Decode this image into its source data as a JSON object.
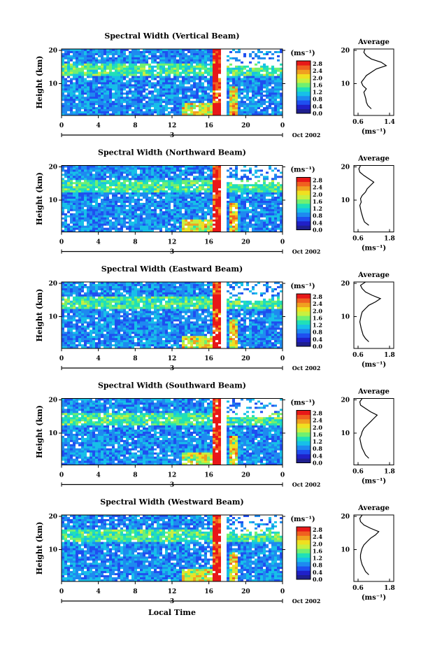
{
  "chart_data": {
    "type": "heatmap",
    "xlabel": "Local Time",
    "date_label": "Oct 2002",
    "day_marker": "3",
    "x_ticks": [
      "0",
      "4",
      "8",
      "12",
      "16",
      "20",
      "0"
    ],
    "y_ticks": [
      "20",
      "10"
    ],
    "ylabel": "Height (km)",
    "colorbar": {
      "unit": "(ms⁻¹)",
      "ticks": [
        "2.8",
        "2.4",
        "2.0",
        "1.6",
        "1.2",
        "0.8",
        "0.4",
        "0.0"
      ],
      "colors": [
        "#1f1f8f",
        "#2020c8",
        "#1f4ff0",
        "#1e8af0",
        "#17c0e8",
        "#20e0b8",
        "#70f070",
        "#c8f040",
        "#f0e020",
        "#f0a020",
        "#f06020",
        "#e81818"
      ]
    },
    "average_title": "Average",
    "average_unit": "(ms⁻¹)",
    "panels": [
      {
        "title": "Spectral Width (Vertical Beam)",
        "avg_xticks": [
          "0.6",
          "1.4"
        ],
        "avg_xlim": [
          0.6,
          1.4
        ],
        "avg_height_km": [
          2,
          3,
          4,
          5,
          6,
          7,
          8,
          9,
          10,
          11,
          12,
          13,
          14,
          15,
          16,
          17,
          18,
          19,
          20
        ],
        "avg_width": [
          0.95,
          0.88,
          0.85,
          0.84,
          0.82,
          0.8,
          0.85,
          0.78,
          0.75,
          0.8,
          0.85,
          0.95,
          1.05,
          1.25,
          1.15,
          0.95,
          0.85,
          0.8,
          0.82
        ]
      },
      {
        "title": "Spectral Width (Northward Beam)",
        "avg_xticks": [
          "0.6",
          "1.8"
        ],
        "avg_xlim": [
          0.6,
          1.8
        ],
        "avg_height_km": [
          2,
          3,
          4,
          5,
          6,
          7,
          8,
          9,
          10,
          11,
          12,
          13,
          14,
          15,
          16,
          17,
          18,
          19,
          20
        ],
        "avg_width": [
          1.05,
          0.92,
          0.88,
          0.85,
          0.82,
          0.8,
          0.78,
          0.82,
          0.8,
          0.85,
          0.95,
          1.0,
          1.1,
          1.2,
          1.05,
          0.9,
          0.78,
          0.75,
          0.8
        ]
      },
      {
        "title": "Spectral Width (Eastward Beam)",
        "avg_xticks": [
          "0.6",
          "1.8"
        ],
        "avg_xlim": [
          0.6,
          1.8
        ],
        "avg_height_km": [
          2,
          3,
          4,
          5,
          6,
          7,
          8,
          9,
          10,
          11,
          12,
          13,
          14,
          15,
          16,
          17,
          18,
          19,
          20
        ],
        "avg_width": [
          1.05,
          0.95,
          0.88,
          0.85,
          0.82,
          0.8,
          0.78,
          0.8,
          0.82,
          0.85,
          0.95,
          1.05,
          1.25,
          1.4,
          1.15,
          0.95,
          0.85,
          0.8,
          0.95
        ]
      },
      {
        "title": "Spectral Width (Southward Beam)",
        "avg_xticks": [
          "0.6",
          "1.8"
        ],
        "avg_xlim": [
          0.6,
          1.8
        ],
        "avg_height_km": [
          2,
          3,
          4,
          5,
          6,
          7,
          8,
          9,
          10,
          11,
          12,
          13,
          14,
          15,
          16,
          17,
          18,
          19,
          20
        ],
        "avg_width": [
          1.05,
          0.95,
          0.9,
          0.85,
          0.82,
          0.8,
          0.78,
          0.82,
          0.85,
          0.9,
          1.0,
          1.1,
          1.2,
          1.3,
          1.1,
          0.95,
          0.8,
          0.78,
          0.85
        ]
      },
      {
        "title": "Spectral Width (Westward Beam)",
        "avg_xticks": [
          "0.6",
          "1.8"
        ],
        "avg_xlim": [
          0.6,
          1.8
        ],
        "avg_height_km": [
          2,
          3,
          4,
          5,
          6,
          7,
          8,
          9,
          10,
          11,
          12,
          13,
          14,
          15,
          16,
          17,
          18,
          19,
          20
        ],
        "avg_width": [
          1.05,
          0.95,
          0.9,
          0.85,
          0.82,
          0.8,
          0.8,
          0.82,
          0.85,
          0.9,
          1.0,
          1.1,
          1.25,
          1.35,
          1.1,
          0.9,
          0.8,
          0.78,
          0.85
        ]
      }
    ]
  }
}
